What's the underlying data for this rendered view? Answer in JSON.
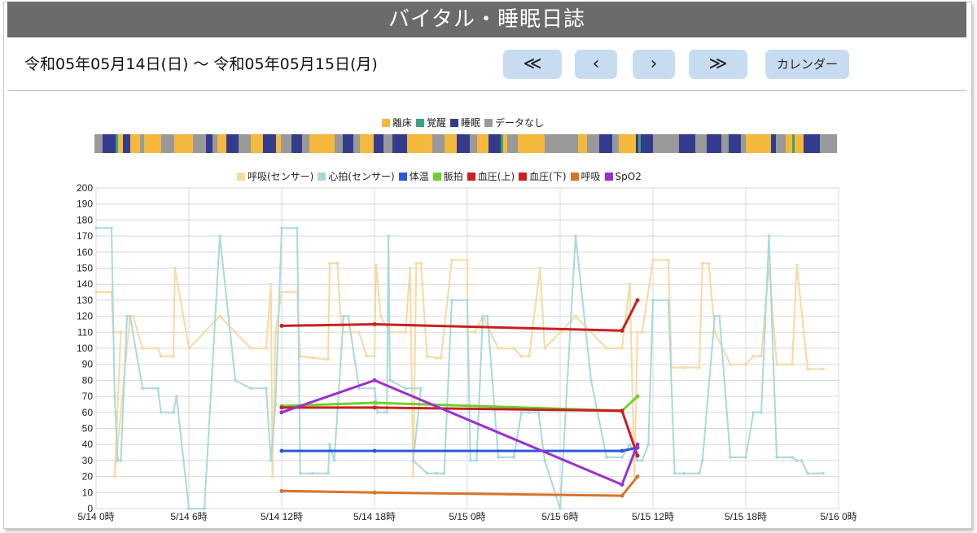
{
  "header": {
    "title": "バイタル・睡眠日誌"
  },
  "date_range": "令和05年05月14日(日)  ～  令和05年05月15日(月)",
  "nav": {
    "first": "≪",
    "prev": "‹",
    "next": "›",
    "last": "≫",
    "calendar": "カレンダー"
  },
  "sleep_legend": [
    {
      "label": "離床",
      "color": "#f4b83c"
    },
    {
      "label": "覚醒",
      "color": "#3aa37f"
    },
    {
      "label": "睡眠",
      "color": "#333c8c"
    },
    {
      "label": "データなし",
      "color": "#999999"
    }
  ],
  "sleep_bar": [
    [
      "n",
      1.0
    ],
    [
      "s",
      1.5
    ],
    [
      "w",
      0.3
    ],
    [
      "a",
      0.6
    ],
    [
      "s",
      0.8
    ],
    [
      "a",
      1.2
    ],
    [
      "n",
      0.5
    ],
    [
      "a",
      2.0
    ],
    [
      "n",
      1.6
    ],
    [
      "a",
      2.2
    ],
    [
      "n",
      1.5
    ],
    [
      "s",
      0.8
    ],
    [
      "n",
      0.6
    ],
    [
      "a",
      1.0
    ],
    [
      "s",
      1.5
    ],
    [
      "n",
      1.4
    ],
    [
      "a",
      1.5
    ],
    [
      "s",
      1.5
    ],
    [
      "a",
      0.6
    ],
    [
      "n",
      1.3
    ],
    [
      "s",
      1.2
    ],
    [
      "n",
      0.9
    ],
    [
      "a",
      3.0
    ],
    [
      "n",
      1.0
    ],
    [
      "s",
      1.2
    ],
    [
      "n",
      0.8
    ],
    [
      "a",
      1.6
    ],
    [
      "s",
      1.2
    ],
    [
      "n",
      1.0
    ],
    [
      "s",
      1.8
    ],
    [
      "a",
      3.0
    ],
    [
      "n",
      1.4
    ],
    [
      "a",
      1.5
    ],
    [
      "s",
      1.5
    ],
    [
      "n",
      0.9
    ],
    [
      "a",
      1.3
    ],
    [
      "s",
      1.5
    ],
    [
      "w",
      0.3
    ],
    [
      "a",
      0.5
    ],
    [
      "n",
      1.2
    ],
    [
      "a",
      3.2
    ],
    [
      "n",
      4.0
    ],
    [
      "a",
      1.0
    ],
    [
      "n",
      1.5
    ],
    [
      "s",
      1.5
    ],
    [
      "n",
      0.8
    ],
    [
      "a",
      2.0
    ],
    [
      "s",
      0.3
    ],
    [
      "w",
      0.3
    ],
    [
      "s",
      1.5
    ],
    [
      "n",
      3.0
    ],
    [
      "s",
      2.0
    ],
    [
      "n",
      1.3
    ],
    [
      "s",
      1.8
    ],
    [
      "n",
      0.8
    ],
    [
      "s",
      1.5
    ],
    [
      "n",
      0.6
    ],
    [
      "a",
      3.0
    ],
    [
      "s",
      0.5
    ],
    [
      "n",
      1.2
    ],
    [
      "a",
      0.8
    ],
    [
      "w",
      0.3
    ],
    [
      "a",
      1.0
    ],
    [
      "s",
      2.0
    ],
    [
      "n",
      2.0
    ]
  ],
  "series_legend": [
    {
      "label": "呼吸(センサー)",
      "color": "#f7d9a2"
    },
    {
      "label": "心拍(センサー)",
      "color": "#a8dada"
    },
    {
      "label": "体温",
      "color": "#2a5bd7"
    },
    {
      "label": "脈拍",
      "color": "#6fcf2c"
    },
    {
      "label": "血圧(上)",
      "color": "#c82020"
    },
    {
      "label": "血圧(下)",
      "color": "#c82020"
    },
    {
      "label": "呼吸",
      "color": "#d8742a"
    },
    {
      "label": "SpO2",
      "color": "#9b30d0"
    }
  ],
  "chart_data": {
    "type": "line",
    "x_unit": "hours from 5/14 0時",
    "xlim": [
      0,
      48
    ],
    "ylim": [
      0,
      200
    ],
    "y_ticks": [
      0,
      10,
      20,
      30,
      40,
      50,
      60,
      70,
      80,
      90,
      100,
      110,
      120,
      130,
      140,
      150,
      160,
      170,
      180,
      190,
      200
    ],
    "x_ticks": [
      {
        "x": 0,
        "label": "5/14 0時"
      },
      {
        "x": 6,
        "label": "5/14 6時"
      },
      {
        "x": 12,
        "label": "5/14 12時"
      },
      {
        "x": 18,
        "label": "5/14 18時"
      },
      {
        "x": 24,
        "label": "5/15 0時"
      },
      {
        "x": 30,
        "label": "5/15 6時"
      },
      {
        "x": 36,
        "label": "5/15 12時"
      },
      {
        "x": 42,
        "label": "5/15 18時"
      },
      {
        "x": 48,
        "label": "5/16 0時"
      }
    ],
    "series": [
      {
        "name": "呼吸(センサー)",
        "color": "#f7d9a2",
        "width": 2,
        "marker": true,
        "points": [
          [
            0,
            135
          ],
          [
            1,
            135
          ],
          [
            1.1,
            110
          ],
          [
            1.6,
            110
          ],
          [
            1.2,
            20
          ],
          [
            2.2,
            120
          ],
          [
            2.4,
            120
          ],
          [
            3,
            100
          ],
          [
            4,
            100
          ],
          [
            4.2,
            95
          ],
          [
            5,
            95
          ],
          [
            5.1,
            150
          ],
          [
            6,
            100
          ],
          [
            7,
            110
          ],
          [
            8,
            120
          ],
          [
            9,
            110
          ],
          [
            10,
            100
          ],
          [
            11,
            100
          ],
          [
            11.3,
            140
          ],
          [
            11.4,
            20
          ],
          [
            11.6,
            110
          ],
          [
            12,
            135
          ],
          [
            13,
            135
          ],
          [
            13.2,
            95
          ],
          [
            14,
            94
          ],
          [
            15,
            93
          ],
          [
            15.1,
            153
          ],
          [
            15.6,
            153
          ],
          [
            15.8,
            120
          ],
          [
            16,
            110
          ],
          [
            17,
            110
          ],
          [
            17.5,
            95
          ],
          [
            18,
            95
          ],
          [
            18.1,
            152
          ],
          [
            18.4,
            120
          ],
          [
            19,
            110
          ],
          [
            20,
            110
          ],
          [
            20.3,
            150
          ],
          [
            20.5,
            20
          ],
          [
            20.7,
            153
          ],
          [
            21,
            153
          ],
          [
            21.4,
            95
          ],
          [
            22,
            94
          ],
          [
            22.3,
            94
          ],
          [
            23,
            155
          ],
          [
            24,
            155
          ],
          [
            24,
            110
          ],
          [
            24.5,
            110
          ],
          [
            25,
            120
          ],
          [
            26,
            100
          ],
          [
            27,
            100
          ],
          [
            27.5,
            95
          ],
          [
            28,
            95
          ],
          [
            28.7,
            150
          ],
          [
            29,
            100
          ],
          [
            30,
            110
          ],
          [
            31,
            120
          ],
          [
            32,
            110
          ],
          [
            33,
            100
          ],
          [
            34,
            100
          ],
          [
            34.5,
            140
          ],
          [
            34.8,
            20
          ],
          [
            35,
            110
          ],
          [
            35.3,
            110
          ],
          [
            36,
            155
          ],
          [
            37,
            155
          ],
          [
            37.2,
            88
          ],
          [
            38,
            88
          ],
          [
            39,
            88
          ],
          [
            39.2,
            153
          ],
          [
            39.6,
            153
          ],
          [
            40,
            110
          ],
          [
            41,
            90
          ],
          [
            42,
            90
          ],
          [
            42.5,
            95
          ],
          [
            43,
            95
          ],
          [
            43.5,
            152
          ],
          [
            44,
            90
          ],
          [
            45,
            90
          ],
          [
            45.3,
            152
          ],
          [
            46,
            87
          ],
          [
            47,
            87
          ]
        ]
      },
      {
        "name": "心拍(センサー)",
        "color": "#a8dada",
        "width": 2,
        "marker": true,
        "points": [
          [
            0,
            175
          ],
          [
            1,
            175
          ],
          [
            1.2,
            70
          ],
          [
            1.4,
            30
          ],
          [
            1.6,
            30
          ],
          [
            2,
            120
          ],
          [
            2.2,
            120
          ],
          [
            3,
            75
          ],
          [
            4,
            75
          ],
          [
            4.2,
            60
          ],
          [
            5,
            60
          ],
          [
            5.2,
            70
          ],
          [
            6,
            0
          ],
          [
            7,
            0
          ],
          [
            8,
            170
          ],
          [
            9,
            80
          ],
          [
            10,
            75
          ],
          [
            11,
            75
          ],
          [
            11.3,
            30
          ],
          [
            11.6,
            65
          ],
          [
            12,
            175
          ],
          [
            13,
            175
          ],
          [
            13.2,
            22
          ],
          [
            14,
            22
          ],
          [
            15,
            22
          ],
          [
            15.1,
            40
          ],
          [
            15.4,
            30
          ],
          [
            16,
            120
          ],
          [
            16.3,
            120
          ],
          [
            17,
            75
          ],
          [
            18,
            75
          ],
          [
            18.2,
            60
          ],
          [
            18.8,
            60
          ],
          [
            18.9,
            170
          ],
          [
            19,
            80
          ],
          [
            20,
            75
          ],
          [
            21,
            75
          ],
          [
            20.5,
            30
          ],
          [
            21.4,
            22
          ],
          [
            22,
            22
          ],
          [
            22.5,
            22
          ],
          [
            23,
            130
          ],
          [
            24,
            130
          ],
          [
            24.2,
            30
          ],
          [
            24.6,
            30
          ],
          [
            25,
            120
          ],
          [
            25.3,
            120
          ],
          [
            26,
            32
          ],
          [
            27,
            32
          ],
          [
            27.5,
            60
          ],
          [
            28,
            60
          ],
          [
            28.6,
            60
          ],
          [
            29,
            30
          ],
          [
            30,
            0
          ],
          [
            31,
            170
          ],
          [
            32,
            80
          ],
          [
            33,
            32
          ],
          [
            34,
            32
          ],
          [
            34.5,
            40
          ],
          [
            35,
            30
          ],
          [
            35.3,
            30
          ],
          [
            35.7,
            40
          ],
          [
            36,
            130
          ],
          [
            37,
            130
          ],
          [
            37.4,
            22
          ],
          [
            38,
            22
          ],
          [
            39,
            22
          ],
          [
            39.2,
            30
          ],
          [
            40,
            120
          ],
          [
            40.3,
            120
          ],
          [
            41,
            32
          ],
          [
            42,
            32
          ],
          [
            42.5,
            60
          ],
          [
            43,
            60
          ],
          [
            43.5,
            170
          ],
          [
            44,
            32
          ],
          [
            45,
            32
          ],
          [
            45.3,
            30
          ],
          [
            45.6,
            30
          ],
          [
            46,
            22
          ],
          [
            47,
            22
          ]
        ]
      },
      {
        "name": "体温",
        "color": "#2a5bd7",
        "width": 3,
        "marker": true,
        "points": [
          [
            12,
            36
          ],
          [
            18,
            36
          ],
          [
            34,
            36
          ],
          [
            35,
            38
          ]
        ]
      },
      {
        "name": "脈拍",
        "color": "#6fcf2c",
        "width": 3,
        "marker": true,
        "points": [
          [
            12,
            64
          ],
          [
            18,
            66
          ],
          [
            34,
            61
          ],
          [
            35,
            70
          ]
        ]
      },
      {
        "name": "血圧(上)",
        "color": "#c82020",
        "width": 3,
        "marker": true,
        "points": [
          [
            12,
            114
          ],
          [
            18,
            115
          ],
          [
            34,
            111
          ],
          [
            35,
            130
          ]
        ]
      },
      {
        "name": "血圧(下)",
        "color": "#c82020",
        "width": 3,
        "marker": true,
        "points": [
          [
            12,
            63
          ],
          [
            18,
            63
          ],
          [
            34,
            61
          ],
          [
            35,
            33
          ]
        ]
      },
      {
        "name": "呼吸",
        "color": "#d8742a",
        "width": 3,
        "marker": true,
        "points": [
          [
            12,
            11
          ],
          [
            18,
            10
          ],
          [
            34,
            8
          ],
          [
            35,
            20
          ]
        ]
      },
      {
        "name": "SpO2",
        "color": "#9b30d0",
        "width": 3,
        "marker": true,
        "points": [
          [
            12,
            60
          ],
          [
            18,
            80
          ],
          [
            34,
            15
          ],
          [
            35,
            40
          ]
        ]
      }
    ]
  }
}
